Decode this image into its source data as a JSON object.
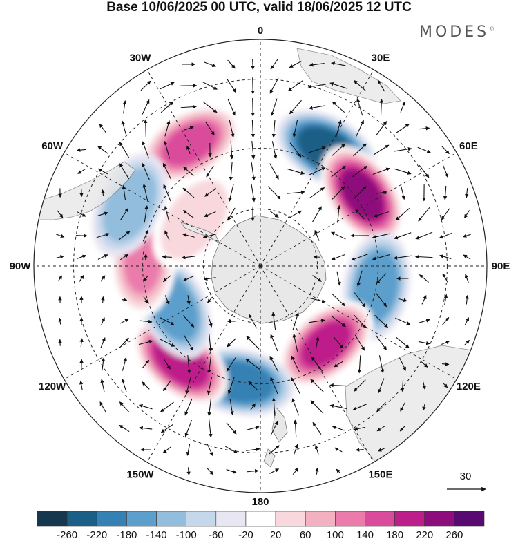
{
  "title": "Base 10/06/2025 00 UTC, valid 18/06/2025 12 UTC",
  "brand": "MODES",
  "brand_mark": "©",
  "projection": "south-polar-stereographic",
  "colors": {
    "land": "#e8e8e8",
    "grid": "#222222",
    "vector": "#111111",
    "coast": "#777777"
  },
  "longitude_labels": [
    {
      "name": "lon-0",
      "text": "0"
    },
    {
      "name": "lon-30e",
      "text": "30E"
    },
    {
      "name": "lon-60e",
      "text": "60E"
    },
    {
      "name": "lon-90e",
      "text": "90E"
    },
    {
      "name": "lon-120e",
      "text": "120E"
    },
    {
      "name": "lon-150e",
      "text": "150E"
    },
    {
      "name": "lon-180",
      "text": "180"
    },
    {
      "name": "lon-150w",
      "text": "150W"
    },
    {
      "name": "lon-120w",
      "text": "120W"
    },
    {
      "name": "lon-90w",
      "text": "90W"
    },
    {
      "name": "lon-60w",
      "text": "60W"
    },
    {
      "name": "lon-30w",
      "text": "30W"
    }
  ],
  "reference_vector": {
    "value": "30"
  },
  "colorbar": {
    "colors": [
      "#16384f",
      "#1c5f86",
      "#3581b4",
      "#5c9fcc",
      "#93bddd",
      "#c5d7eb",
      "#e8e6f2",
      "#ffffff",
      "#f8d8dd",
      "#f3b0c1",
      "#ea7bab",
      "#da4b9c",
      "#bd1f8a",
      "#8e0d7c",
      "#580a70"
    ],
    "ticks": [
      "-260",
      "-220",
      "-180",
      "-140",
      "-100",
      "-60",
      "-20",
      "20",
      "60",
      "100",
      "140",
      "180",
      "220",
      "260"
    ]
  },
  "anomaly_centers": [
    {
      "name": "positive-center-30w",
      "lon": -30,
      "lat": -43,
      "value": 150
    },
    {
      "name": "negative-center-30e",
      "lon": 30,
      "lat": -45,
      "value": -240
    },
    {
      "name": "positive-center-60e",
      "lon": 55,
      "lat": -48,
      "value": 250
    },
    {
      "name": "negative-center-90e",
      "lon": 100,
      "lat": -50,
      "value": -140
    },
    {
      "name": "positive-center-140e",
      "lon": 140,
      "lat": -55,
      "value": 200
    },
    {
      "name": "negative-center-170w",
      "lon": -170,
      "lat": -50,
      "value": -200
    },
    {
      "name": "positive-center-140w",
      "lon": -140,
      "lat": -48,
      "value": 220
    },
    {
      "name": "negative-center-115w",
      "lon": -115,
      "lat": -57,
      "value": -150
    },
    {
      "name": "positive-center-90w",
      "lon": -88,
      "lat": -50,
      "value": 120
    },
    {
      "name": "negative-center-65w",
      "lon": -65,
      "lat": -42,
      "value": -120
    },
    {
      "name": "positive-center-60w",
      "lon": -55,
      "lat": -62,
      "value": 60
    }
  ]
}
